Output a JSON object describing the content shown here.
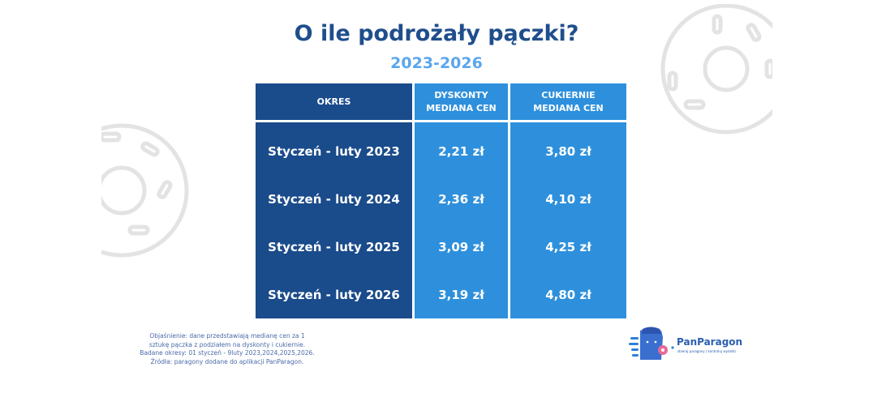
{
  "title": "O ile podrożały pączki?",
  "subtitle": "2023-2026",
  "table": {
    "headers": [
      "OKRES",
      "DYSKONTY\nMEDIANA CEN",
      "CUKIERNIE\nMEDIANA CEN"
    ],
    "rows": [
      [
        "Styczeń - luty 2023",
        "2,21 zł",
        "3,80 zł"
      ],
      [
        "Styczeń - luty 2024",
        "2,36 zł",
        "4,10 zł"
      ],
      [
        "Styczeń - luty 2025",
        "3,09 zł",
        "4,25 zł"
      ],
      [
        "Styczeń - luty 2026",
        "3,19 zł",
        "4,80 zł"
      ]
    ]
  },
  "note": {
    "lines": [
      "Objaśnienie: dane przedstawiają medianę cen za 1",
      "sztukę pączka z podziałem na dyskonty i cukiernie.",
      "Badane okresy: 01 styczeń - 9luty 2023,2024,2025,2026.",
      "Źródła: paragony dodane do aplikacji PanParagon."
    ]
  },
  "logo": {
    "name": "PanParagon",
    "tagline": "zbieraj paragony | kontroluj wydatki"
  },
  "colors": {
    "dark_cell": "#1a4b8b",
    "light_cell": "#2e90dc",
    "title": "#1f4e8c",
    "subtitle": "#5aa6ee"
  }
}
